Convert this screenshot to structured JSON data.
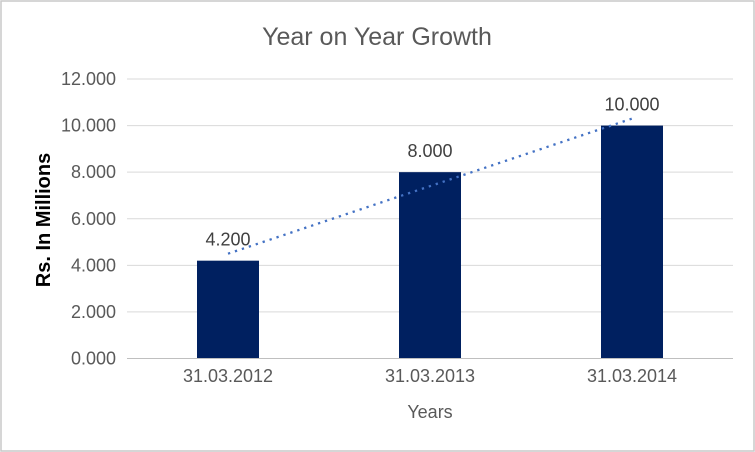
{
  "chart_data": {
    "type": "bar",
    "title": "Year on Year Growth",
    "xlabel": "Years",
    "ylabel": "Rs. In Millions",
    "categories": [
      "31.03.2012",
      "31.03.2013",
      "31.03.2014"
    ],
    "values": [
      4.2,
      8.0,
      10.0
    ],
    "data_labels": [
      "4.200",
      "8.000",
      "10.000"
    ],
    "yticks": [
      0,
      2,
      4,
      6,
      8,
      10,
      12
    ],
    "ytick_labels": [
      "0.000",
      "2.000",
      "4.000",
      "6.000",
      "8.000",
      "10.000",
      "12.000"
    ],
    "ylim": [
      0,
      12
    ],
    "grid": true,
    "legend": "none",
    "trendline": {
      "type": "linear",
      "style": "dotted"
    },
    "colors": {
      "bar": "#002060",
      "trendline": "#4472C4",
      "gridline": "#D9D9D9",
      "axis_line": "#BFBFBF",
      "title_text": "#595959",
      "tick_text": "#595959",
      "data_label_text": "#404040",
      "y_axis_title_text": "#000000",
      "chart_border": "#C9C9C9",
      "background": "#FFFFFF"
    }
  }
}
